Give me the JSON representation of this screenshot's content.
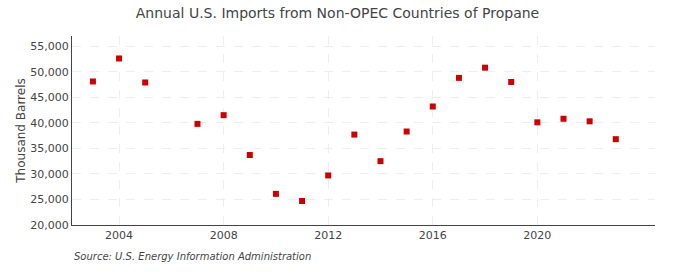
{
  "chart_data": {
    "type": "scatter",
    "title": "Annual U.S. Imports from Non-OPEC Countries of Propane",
    "ylabel": "Thousand Barrels",
    "annotations": [
      "Source: U.S. Energy Information Administration"
    ],
    "x": [
      2003,
      2004,
      2005,
      2007,
      2008,
      2009,
      2010,
      2011,
      2012,
      2013,
      2014,
      2015,
      2016,
      2017,
      2018,
      2019,
      2020,
      2021,
      2022,
      2023
    ],
    "values": [
      48100,
      52600,
      47900,
      39800,
      41500,
      33700,
      26100,
      24700,
      29700,
      37700,
      32500,
      38300,
      43200,
      48800,
      50800,
      48000,
      40100,
      40800,
      40300,
      36800
    ],
    "color": "#cc0000",
    "marker": "square",
    "xlim": [
      2002.2,
      2024.5
    ],
    "xticks": [
      2004,
      2008,
      2012,
      2016,
      2020
    ],
    "ylim": [
      20000,
      57000
    ],
    "yticks": [
      {
        "value": 20000,
        "label": "20,000"
      },
      {
        "value": 25000,
        "label": "25,000"
      },
      {
        "value": 30000,
        "label": "30,000"
      },
      {
        "value": 35000,
        "label": "35,000"
      },
      {
        "value": 40000,
        "label": "40,000"
      },
      {
        "value": 45000,
        "label": "45,000"
      },
      {
        "value": 50000,
        "label": "50,000"
      },
      {
        "value": 55000,
        "label": "55,000"
      }
    ],
    "grid": true
  }
}
